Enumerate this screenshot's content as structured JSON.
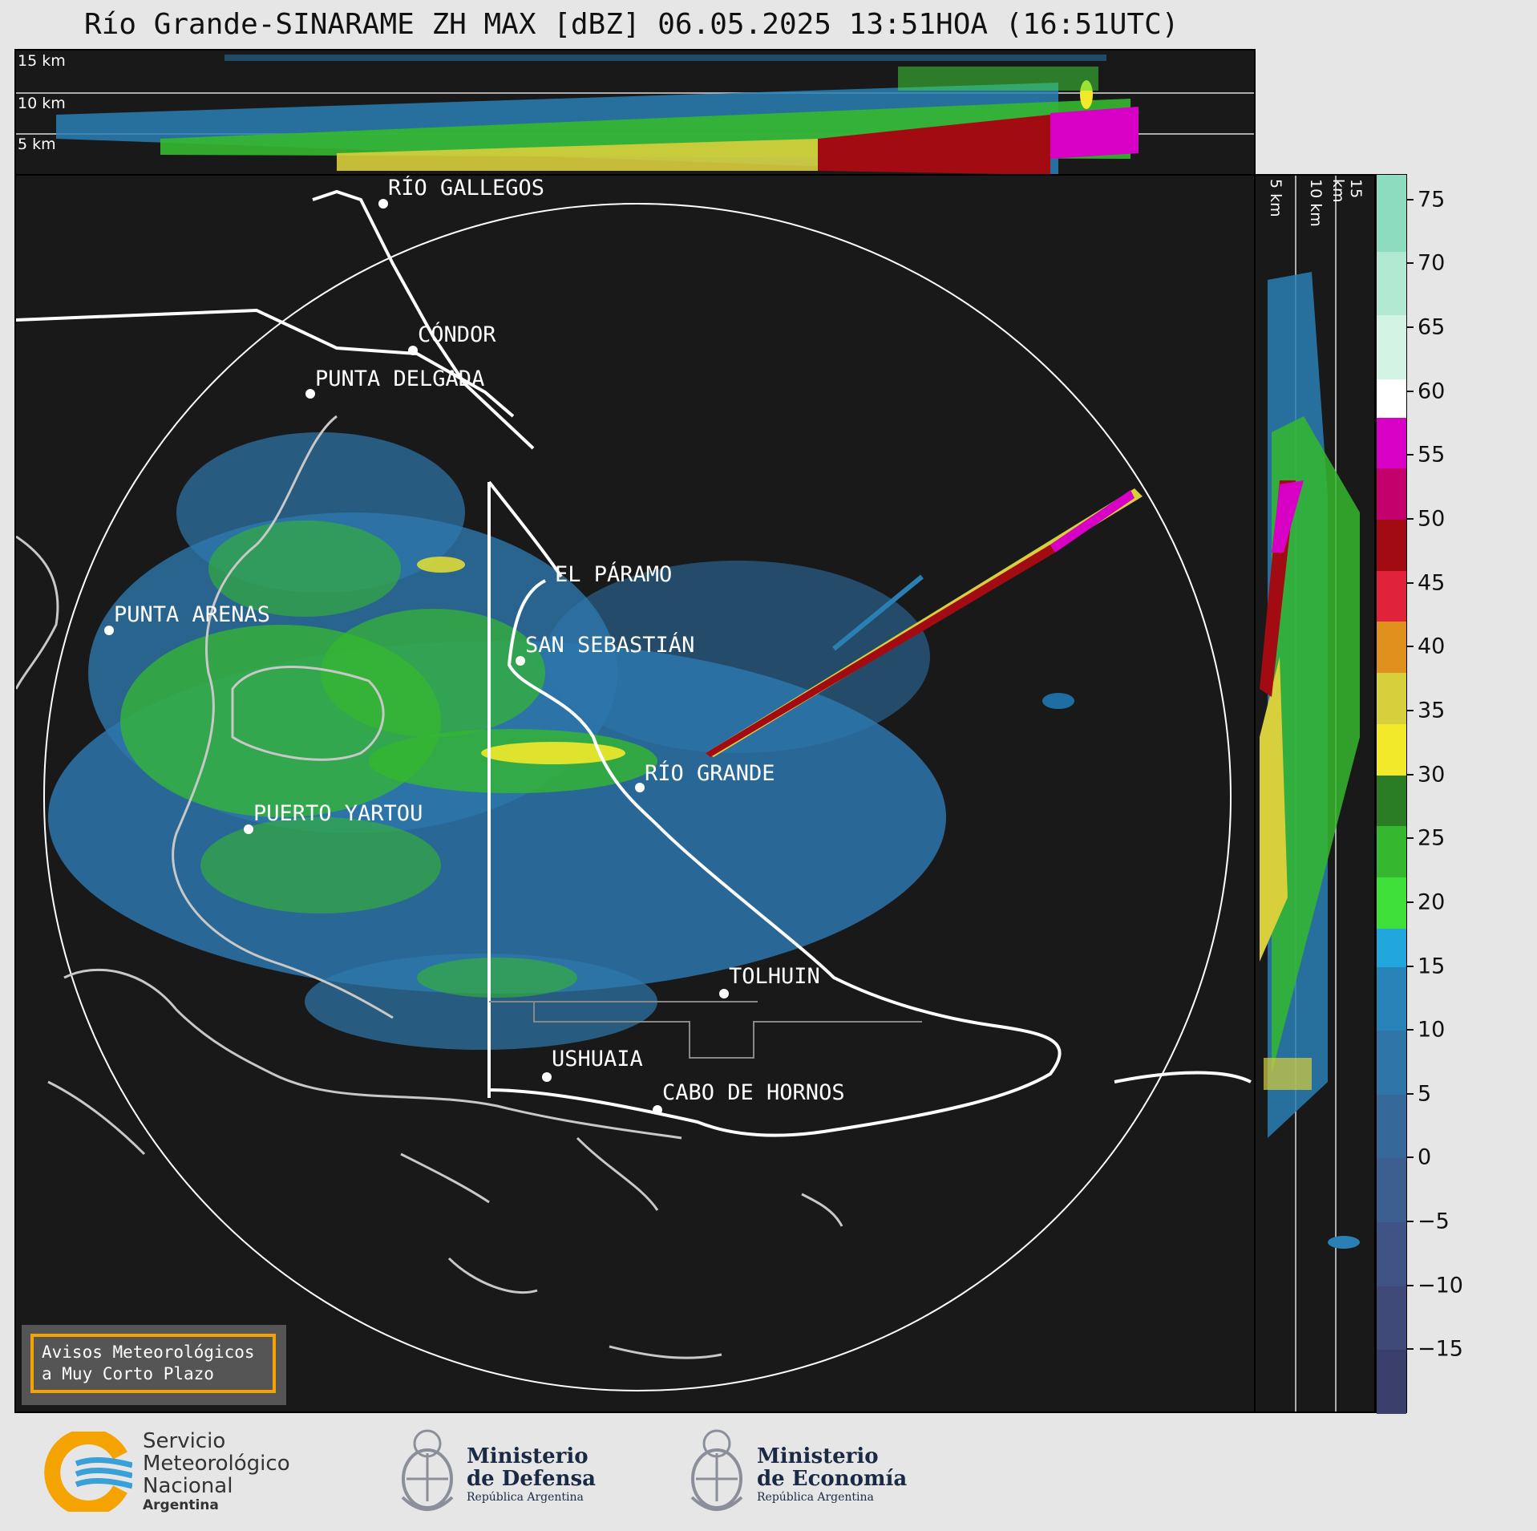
{
  "title": "Río Grande-SINARAME ZH MAX [dBZ] 06.05.2025 13:51HOA (16:51UTC)",
  "top_panel": {
    "km_labels": [
      "15 km",
      "10 km",
      "5 km"
    ]
  },
  "side_panel": {
    "km_labels": [
      "5 km",
      "10 km",
      "15 km"
    ]
  },
  "cities": [
    {
      "name": "RÍO GALLEGOS"
    },
    {
      "name": "CÓNDOR"
    },
    {
      "name": "PUNTA DELGADA"
    },
    {
      "name": "EL PÁRAMO"
    },
    {
      "name": "PUNTA ARENAS"
    },
    {
      "name": "SAN SEBASTIÁN"
    },
    {
      "name": "RÍO GRANDE"
    },
    {
      "name": "PUERTO YARTOU"
    },
    {
      "name": "TOLHUIN"
    },
    {
      "name": "USHUAIA"
    },
    {
      "name": "CABO DE HORNOS"
    }
  ],
  "colorbar": {
    "unit": "dBZ",
    "min": -20,
    "max": 77,
    "tick_labels": [
      "75",
      "70",
      "65",
      "60",
      "55",
      "50",
      "45",
      "40",
      "35",
      "30",
      "25",
      "20",
      "15",
      "10",
      "5",
      "0",
      "−5",
      "−10",
      "−15"
    ],
    "tick_values": [
      75,
      70,
      65,
      60,
      55,
      50,
      45,
      40,
      35,
      30,
      25,
      20,
      15,
      10,
      5,
      0,
      -5,
      -10,
      -15
    ],
    "bands": [
      {
        "from": -20,
        "to": -15,
        "color": "#3b3f6b"
      },
      {
        "from": -15,
        "to": -10,
        "color": "#3f4a78"
      },
      {
        "from": -10,
        "to": -5,
        "color": "#3f5485"
      },
      {
        "from": -5,
        "to": 0,
        "color": "#3d5f90"
      },
      {
        "from": 0,
        "to": 5,
        "color": "#36699a"
      },
      {
        "from": 5,
        "to": 10,
        "color": "#2f75a8"
      },
      {
        "from": 10,
        "to": 15,
        "color": "#2883b8"
      },
      {
        "from": 15,
        "to": 18,
        "color": "#22a7dc"
      },
      {
        "from": 18,
        "to": 22,
        "color": "#3fe03a"
      },
      {
        "from": 22,
        "to": 26,
        "color": "#35b82f"
      },
      {
        "from": 26,
        "to": 30,
        "color": "#2a7d24"
      },
      {
        "from": 30,
        "to": 34,
        "color": "#f2e92a"
      },
      {
        "from": 34,
        "to": 38,
        "color": "#d8cf3c"
      },
      {
        "from": 38,
        "to": 42,
        "color": "#e0901c"
      },
      {
        "from": 42,
        "to": 46,
        "color": "#e0233a"
      },
      {
        "from": 46,
        "to": 50,
        "color": "#a30b12"
      },
      {
        "from": 50,
        "to": 54,
        "color": "#c4006c"
      },
      {
        "from": 54,
        "to": 58,
        "color": "#d800c4"
      },
      {
        "from": 58,
        "to": 61,
        "color": "#ffffff"
      },
      {
        "from": 61,
        "to": 66,
        "color": "#d2f2e4"
      },
      {
        "from": 66,
        "to": 71,
        "color": "#b0e8d2"
      },
      {
        "from": 71,
        "to": 77,
        "color": "#8edcc0"
      }
    ]
  },
  "warning_box": {
    "text": "Avisos Meteorológicos\na Muy Corto Plazo",
    "border_color": "#f5a300"
  },
  "logos": {
    "smn": {
      "line1": "Servicio",
      "line2": "Meteorológico",
      "line3": "Nacional",
      "line4": "Argentina",
      "colors": [
        "#f5a300",
        "#3aa0d8"
      ]
    },
    "defensa": {
      "line1": "Ministerio",
      "line2": "de Defensa",
      "line3": "República Argentina"
    },
    "economia": {
      "line1": "Ministerio",
      "line2": "de Economía",
      "line3": "República Argentina"
    }
  }
}
